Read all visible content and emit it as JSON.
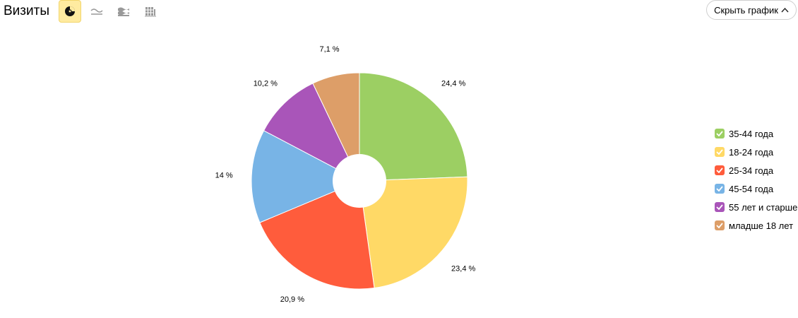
{
  "header": {
    "title": "Визиты",
    "hide_chart_label": "Скрыть график"
  },
  "toolbar": {
    "buttons": [
      {
        "name": "pie-chart-icon",
        "active": true
      },
      {
        "name": "line-chart-icon",
        "active": false
      },
      {
        "name": "area-chart-icon",
        "active": false
      },
      {
        "name": "bar-chart-icon",
        "active": false
      }
    ]
  },
  "chart_data": {
    "type": "pie",
    "title": "",
    "inner_hole": true,
    "legend_position": "right",
    "categories": [
      "35-44 года",
      "18-24 года",
      "25-34 года",
      "45-54 года",
      "55 лет и старше",
      "младше 18 лет"
    ],
    "values": [
      24.4,
      23.4,
      20.9,
      14,
      10.2,
      7.1
    ],
    "data_labels": [
      "24,4 %",
      "23,4 %",
      "20,9 %",
      "14 %",
      "10,2 %",
      "7,1 %"
    ],
    "colors": [
      "#9ccf63",
      "#ffd966",
      "#ff5c3c",
      "#78b4e6",
      "#a955b9",
      "#dd9e68"
    ]
  }
}
